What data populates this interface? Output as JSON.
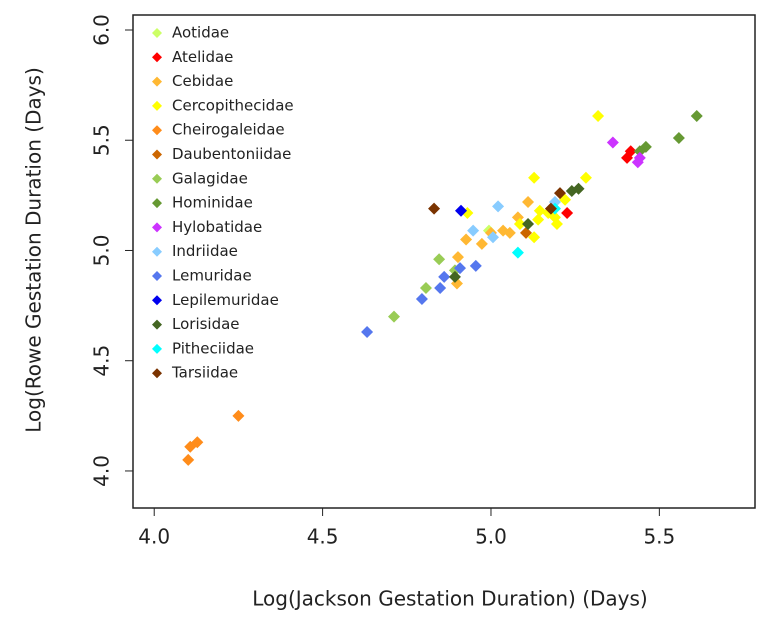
{
  "chart_data": {
    "type": "scatter",
    "xlabel": "Log(Jackson Gestation Duration) (Days)",
    "ylabel": "Log(Rowe Gestation Duration (Days)",
    "xlim": [
      3.937,
      5.784
    ],
    "ylim": [
      3.832,
      6.068
    ],
    "xticks": [
      {
        "value": 4,
        "label": "4.0"
      },
      4.5,
      {
        "value": 5,
        "label": "5.0"
      },
      5.5
    ],
    "yticks": [
      {
        "value": 4,
        "label": "4.0"
      },
      4.5,
      {
        "value": 5,
        "label": "5.0"
      },
      5.5,
      {
        "value": 6,
        "label": "6.0"
      }
    ],
    "legend": "upper-left",
    "series": [
      {
        "name": "Aotidae",
        "color": "#ccff66",
        "x": [
          4.994
        ],
        "values": [
          5.09
        ]
      },
      {
        "name": "Atelidae",
        "color": "#ff0000",
        "x": [
          5.404,
          5.415,
          5.226
        ],
        "values": [
          5.42,
          5.45,
          5.17
        ]
      },
      {
        "name": "Cebidae",
        "color": "#ffb833",
        "x": [
          4.899,
          4.902,
          4.926,
          4.973,
          5.0,
          5.036,
          5.056,
          5.08,
          5.11
        ],
        "values": [
          4.85,
          4.97,
          5.05,
          5.03,
          5.08,
          5.09,
          5.08,
          5.15,
          5.22
        ]
      },
      {
        "name": "Cercopithecidae",
        "color": "#ffff00",
        "x": [
          5.318,
          5.282,
          5.128,
          4.93,
          5.128,
          5.196,
          5.145,
          5.17,
          5.19,
          5.22,
          5.14,
          5.086
        ],
        "values": [
          5.61,
          5.33,
          5.33,
          5.17,
          5.06,
          5.12,
          5.18,
          5.17,
          5.15,
          5.23,
          5.14,
          5.12
        ]
      },
      {
        "name": "Cheirogaleidae",
        "color": "#ff8c1a",
        "x": [
          4.101,
          4.107,
          4.128,
          4.25
        ],
        "values": [
          4.05,
          4.11,
          4.13,
          4.25
        ]
      },
      {
        "name": "Daubentoniidae",
        "color": "#cc6600",
        "x": [
          5.104
        ],
        "values": [
          5.08
        ]
      },
      {
        "name": "Galagidae",
        "color": "#99cc55",
        "x": [
          4.846,
          4.807,
          4.712,
          4.893
        ],
        "values": [
          4.96,
          4.83,
          4.7,
          4.91
        ]
      },
      {
        "name": "Hominidae",
        "color": "#669933",
        "x": [
          5.611,
          5.558,
          5.46,
          5.442
        ],
        "values": [
          5.61,
          5.51,
          5.47,
          5.45
        ]
      },
      {
        "name": "Hylobatidae",
        "color": "#cc33ff",
        "x": [
          5.362,
          5.442,
          5.436
        ],
        "values": [
          5.49,
          5.42,
          5.4
        ]
      },
      {
        "name": "Indriidae",
        "color": "#88ccff",
        "x": [
          5.021,
          4.947,
          5.006,
          5.19
        ],
        "values": [
          5.2,
          5.09,
          5.06,
          5.22
        ]
      },
      {
        "name": "Lemuridae",
        "color": "#5577ee",
        "x": [
          4.632,
          4.795,
          4.849,
          4.861,
          4.908,
          4.955
        ],
        "values": [
          4.63,
          4.78,
          4.83,
          4.88,
          4.92,
          4.93
        ]
      },
      {
        "name": "Lepilemuridae",
        "color": "#0000ee",
        "x": [
          4.911
        ],
        "values": [
          5.18
        ]
      },
      {
        "name": "Lorisidae",
        "color": "#446622",
        "x": [
          4.893,
          5.11,
          5.24,
          5.26
        ],
        "values": [
          4.88,
          5.12,
          5.27,
          5.28
        ]
      },
      {
        "name": "Pitheciidae",
        "color": "#00ffff",
        "x": [
          5.08,
          5.19
        ],
        "values": [
          4.99,
          5.19
        ]
      },
      {
        "name": "Tarsiidae",
        "color": "#7a3300",
        "x": [
          4.831,
          5.178,
          5.205
        ],
        "values": [
          5.19,
          5.19,
          5.26
        ]
      }
    ]
  }
}
